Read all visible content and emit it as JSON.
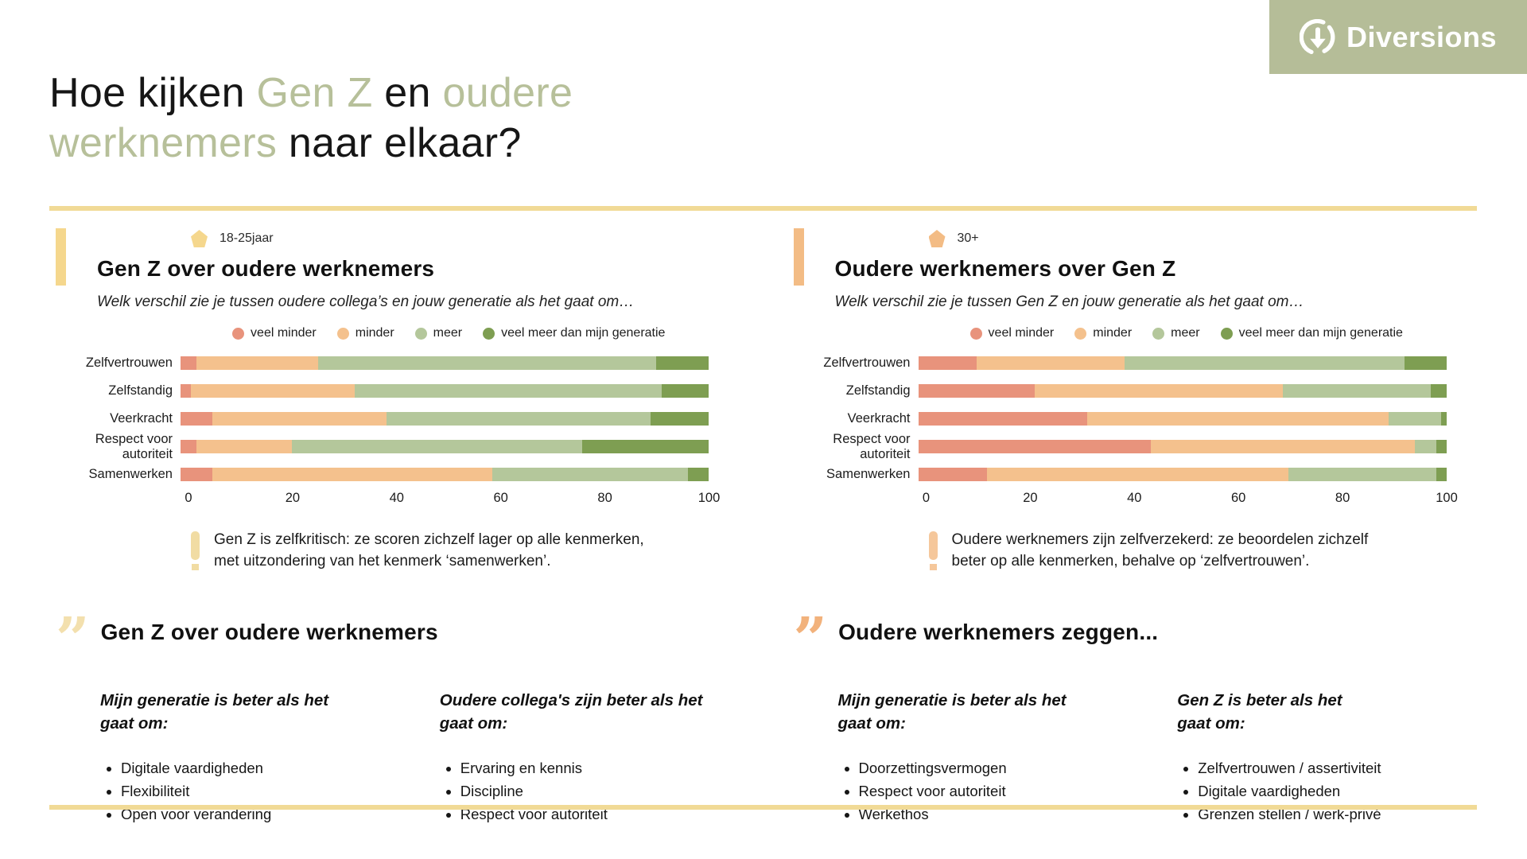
{
  "brand": {
    "name": "Diversions",
    "bg_color": "#B5BD98"
  },
  "colors": {
    "title_green": "#B7C09A",
    "divider_yellow": "#F1DA96"
  },
  "icons": {
    "quote_glyph": "”"
  },
  "title": {
    "parts": [
      "Hoe kijken ",
      "Gen Z",
      " en ",
      "oudere",
      "werknemers",
      " naar elkaar?"
    ]
  },
  "legend": [
    {
      "label": "veel minder",
      "color": "#E8937C"
    },
    {
      "label": "minder",
      "color": "#F4C18D"
    },
    {
      "label": "meer",
      "color": "#B4C79B"
    },
    {
      "label": "veel meer dan mijn generatie",
      "color": "#7E9E52"
    }
  ],
  "panels": [
    {
      "tag": "18-25jaar",
      "accent": "#F5D78D",
      "pentagon": "#F5D78D",
      "excl": "#F1DCA3",
      "quote": "#F3E0AE",
      "heading": "Gen Z over oudere werknemers",
      "subtitle": "Welk verschil zie je tussen oudere collega’s en jouw generatie als het gaat om…",
      "note": "Gen Z is zelfkritisch: ze scoren zichzelf lager op alle kenmerken,\nmet uitzondering van het kenmerk ‘samenwerken’.",
      "quote_heading": "Gen Z over oudere werknemers",
      "columns": [
        {
          "heading": "Mijn generatie is beter als het\ngaat om:",
          "items": [
            "Digitale vaardigheden",
            "Flexibiliteit",
            "Open voor verandering"
          ]
        },
        {
          "heading": "Oudere collega's zijn beter als het\ngaat om:",
          "items": [
            "Ervaring en kennis",
            "Discipline",
            "Respect voor autoriteit"
          ]
        }
      ]
    },
    {
      "tag": "30+",
      "accent": "#F3BC85",
      "pentagon": "#F3BC85",
      "excl": "#F5C79B",
      "quote": "#F2B27C",
      "heading": "Oudere werknemers over Gen Z",
      "subtitle": "Welk verschil zie je tussen Gen Z en jouw generatie als het gaat om…",
      "note": "Oudere werknemers zijn zelfverzekerd: ze beoordelen zichzelf\nbeter op alle kenmerken, behalve op ‘zelfvertrouwen’.",
      "quote_heading": "Oudere werknemers zeggen...",
      "columns": [
        {
          "heading": "Mijn generatie is beter als het\ngaat om:",
          "items": [
            "Doorzettingsvermogen",
            "Respect voor autoriteit",
            "Werkethos"
          ]
        },
        {
          "heading": "Gen Z is beter als het\ngaat om:",
          "items": [
            "Zelfvertrouwen / assertiviteit",
            "Digitale vaardigheden",
            "Grenzen stellen / werk-privé"
          ]
        }
      ]
    }
  ],
  "chart_data": [
    {
      "type": "bar",
      "subtype": "horizontal-stacked",
      "title": "Gen Z over oudere werknemers",
      "categories": [
        "Zelfvertrouwen",
        "Zelfstandig",
        "Veerkracht",
        "Respect voor autoriteit",
        "Samenwerken"
      ],
      "series": [
        {
          "name": "veel minder",
          "color": "#E8937C",
          "values": [
            3,
            2,
            6,
            3,
            6
          ]
        },
        {
          "name": "minder",
          "color": "#F4C18D",
          "values": [
            23,
            31,
            33,
            18,
            53
          ]
        },
        {
          "name": "meer",
          "color": "#B4C79B",
          "values": [
            64,
            58,
            50,
            55,
            37
          ]
        },
        {
          "name": "veel meer dan mijn generatie",
          "color": "#7E9E52",
          "values": [
            10,
            9,
            11,
            24,
            4
          ]
        }
      ],
      "xlim": [
        0,
        100
      ],
      "xticks": [
        0,
        20,
        40,
        60,
        80,
        100
      ],
      "grid": false,
      "legend_position": "top-center"
    },
    {
      "type": "bar",
      "subtype": "horizontal-stacked",
      "title": "Oudere werknemers over Gen Z",
      "categories": [
        "Zelfvertrouwen",
        "Zelfstandig",
        "Veerkracht",
        "Respect voor autoriteit",
        "Samenwerken"
      ],
      "series": [
        {
          "name": "veel minder",
          "color": "#E8937C",
          "values": [
            11,
            22,
            32,
            44,
            13
          ]
        },
        {
          "name": "minder",
          "color": "#F4C18D",
          "values": [
            28,
            47,
            57,
            50,
            57
          ]
        },
        {
          "name": "meer",
          "color": "#B4C79B",
          "values": [
            53,
            28,
            10,
            4,
            28
          ]
        },
        {
          "name": "veel meer dan mijn generatie",
          "color": "#7E9E52",
          "values": [
            8,
            3,
            1,
            2,
            2
          ]
        }
      ],
      "xlim": [
        0,
        100
      ],
      "xticks": [
        0,
        20,
        40,
        60,
        80,
        100
      ],
      "grid": false,
      "legend_position": "top-center"
    }
  ]
}
